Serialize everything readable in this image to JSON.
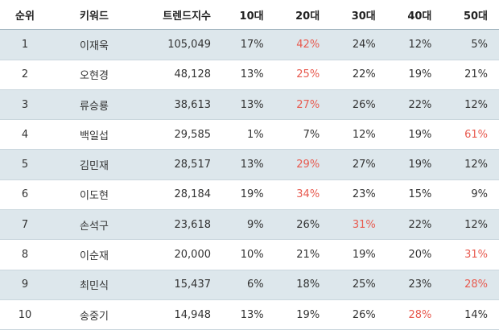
{
  "table": {
    "headers": [
      "순위",
      "키워드",
      "트렌드지수",
      "10대",
      "20대",
      "30대",
      "40대",
      "50대"
    ],
    "highlight_color": "#e85a4f",
    "row_stripe_color": "#dde7ec",
    "rows": [
      {
        "rank": "1",
        "keyword": "이재욱",
        "index": "105,049",
        "a10": "17%",
        "a20": "42%",
        "a30": "24%",
        "a40": "12%",
        "a50": "5%",
        "highlight": "a20"
      },
      {
        "rank": "2",
        "keyword": "오현경",
        "index": "48,128",
        "a10": "13%",
        "a20": "25%",
        "a30": "22%",
        "a40": "19%",
        "a50": "21%",
        "highlight": "a20"
      },
      {
        "rank": "3",
        "keyword": "류승룡",
        "index": "38,613",
        "a10": "13%",
        "a20": "27%",
        "a30": "26%",
        "a40": "22%",
        "a50": "12%",
        "highlight": "a20"
      },
      {
        "rank": "4",
        "keyword": "백일섭",
        "index": "29,585",
        "a10": "1%",
        "a20": "7%",
        "a30": "12%",
        "a40": "19%",
        "a50": "61%",
        "highlight": "a50"
      },
      {
        "rank": "5",
        "keyword": "김민재",
        "index": "28,517",
        "a10": "13%",
        "a20": "29%",
        "a30": "27%",
        "a40": "19%",
        "a50": "12%",
        "highlight": "a20"
      },
      {
        "rank": "6",
        "keyword": "이도현",
        "index": "28,184",
        "a10": "19%",
        "a20": "34%",
        "a30": "23%",
        "a40": "15%",
        "a50": "9%",
        "highlight": "a20"
      },
      {
        "rank": "7",
        "keyword": "손석구",
        "index": "23,618",
        "a10": "9%",
        "a20": "26%",
        "a30": "31%",
        "a40": "22%",
        "a50": "12%",
        "highlight": "a30"
      },
      {
        "rank": "8",
        "keyword": "이순재",
        "index": "20,000",
        "a10": "10%",
        "a20": "21%",
        "a30": "19%",
        "a40": "20%",
        "a50": "31%",
        "highlight": "a50"
      },
      {
        "rank": "9",
        "keyword": "최민식",
        "index": "15,437",
        "a10": "6%",
        "a20": "18%",
        "a30": "25%",
        "a40": "23%",
        "a50": "28%",
        "highlight": "a50"
      },
      {
        "rank": "10",
        "keyword": "송중기",
        "index": "14,948",
        "a10": "13%",
        "a20": "19%",
        "a30": "26%",
        "a40": "28%",
        "a50": "14%",
        "highlight": "a40"
      }
    ]
  }
}
